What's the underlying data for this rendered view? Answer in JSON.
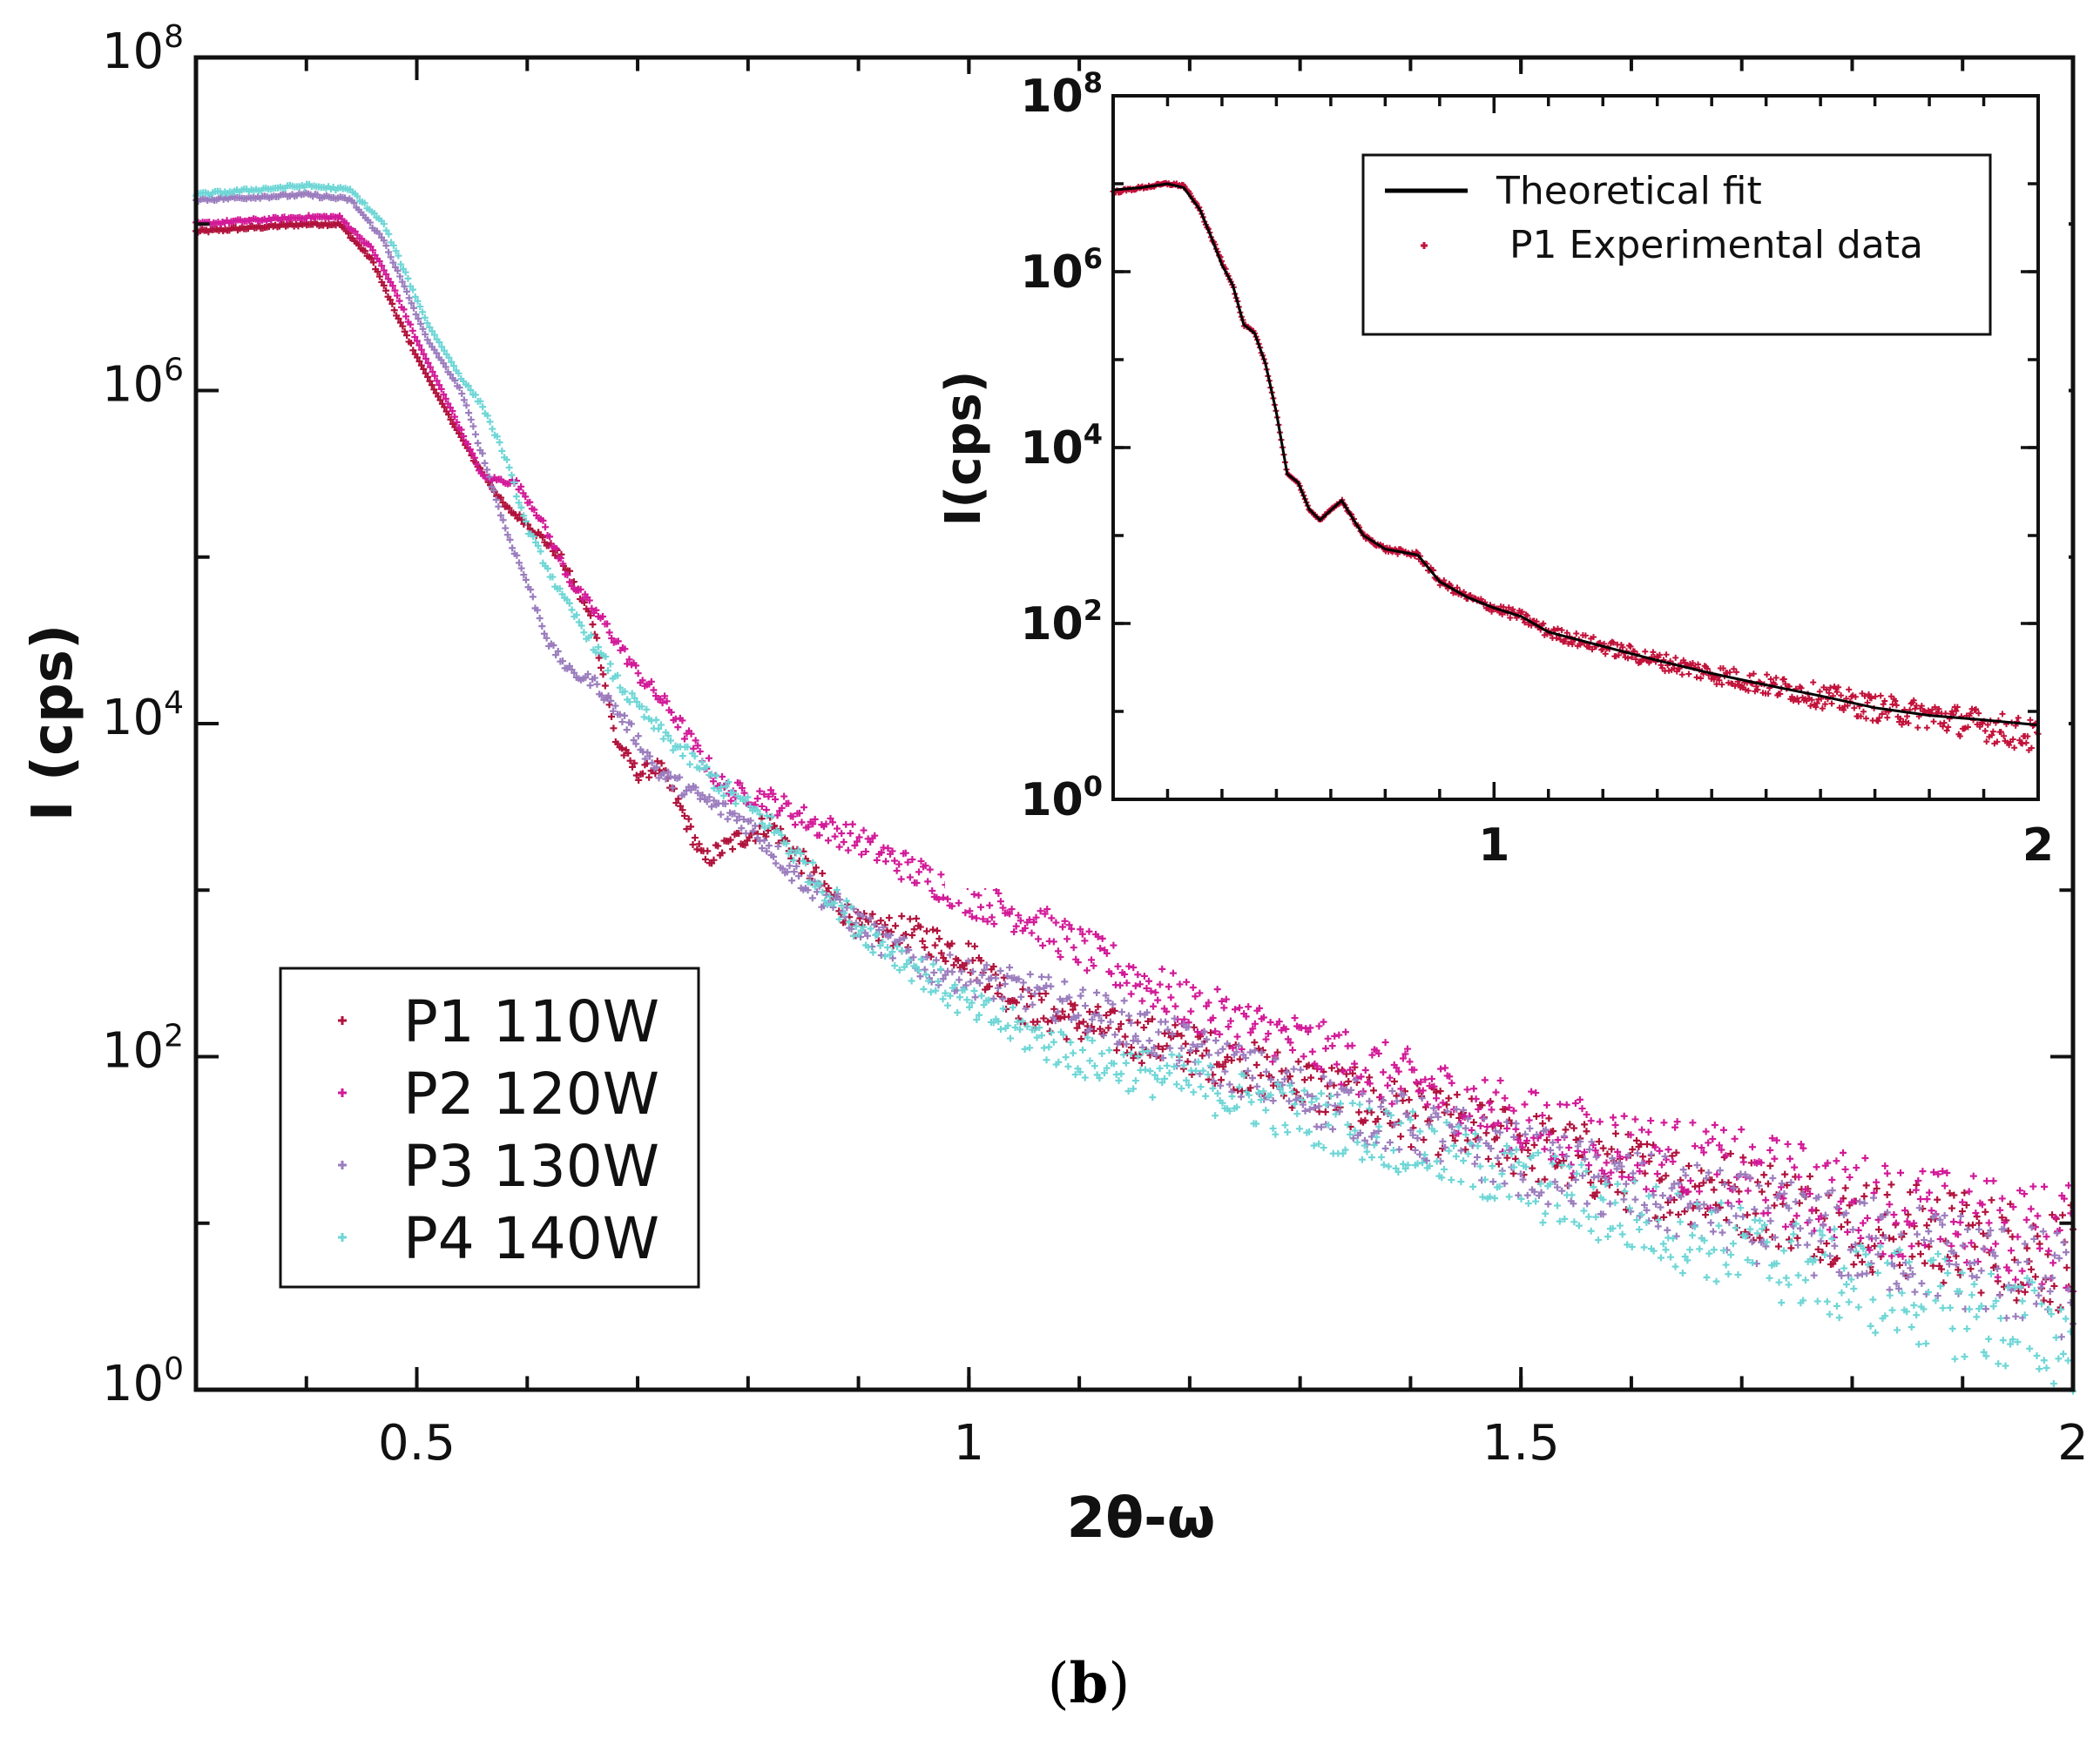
{
  "caption": {
    "open": "(",
    "letter": "b",
    "close": ")"
  },
  "chart_data": [
    {
      "type": "scatter",
      "name": "main",
      "title": "",
      "xlabel": "2θ-ω",
      "ylabel": "I (cps)",
      "xscale": "linear",
      "yscale": "log",
      "xlim": [
        0.3,
        2.0
      ],
      "ylim": [
        1,
        100000000
      ],
      "xticks": [
        {
          "value": 0.5,
          "label": "0.5"
        },
        {
          "value": 1.0,
          "label": "1"
        },
        {
          "value": 1.5,
          "label": "1.5"
        },
        {
          "value": 2.0,
          "label": "2"
        }
      ],
      "yticks": [
        {
          "value": 1,
          "base": "10",
          "exp": "0"
        },
        {
          "value": 100,
          "base": "10",
          "exp": "2"
        },
        {
          "value": 10000,
          "base": "10",
          "exp": "4"
        },
        {
          "value": 1000000,
          "base": "10",
          "exp": "6"
        },
        {
          "value": 100000000,
          "base": "10",
          "exp": "8"
        }
      ],
      "legend_position": "lower-left",
      "series": [
        {
          "name": "P1 110W",
          "color": "#b0123c",
          "points": [
            [
              0.3,
              9000000.0
            ],
            [
              0.35,
              9500000.0
            ],
            [
              0.4,
              10000000.0
            ],
            [
              0.43,
              10000000.0
            ],
            [
              0.46,
              6000000.0
            ],
            [
              0.48,
              3000000.0
            ],
            [
              0.5,
              1600000.0
            ],
            [
              0.52,
              900000.0
            ],
            [
              0.55,
              400000.0
            ],
            [
              0.58,
              200000.0
            ],
            [
              0.6,
              160000.0
            ],
            [
              0.63,
              100000.0
            ],
            [
              0.66,
              40000.0
            ],
            [
              0.68,
              8000.0
            ],
            [
              0.7,
              5000.0
            ],
            [
              0.72,
              5500.0
            ],
            [
              0.74,
              3000.0
            ],
            [
              0.76,
              1500.0
            ],
            [
              0.79,
              2000.0
            ],
            [
              0.82,
              2500.0
            ],
            [
              0.86,
              1200.0
            ],
            [
              0.9,
              600
            ],
            [
              0.95,
              550
            ],
            [
              1.0,
              400
            ],
            [
              1.05,
              200
            ],
            [
              1.1,
              160
            ],
            [
              1.15,
              130
            ],
            [
              1.2,
              110
            ],
            [
              1.3,
              70
            ],
            [
              1.4,
              45
            ],
            [
              1.5,
              30
            ],
            [
              1.6,
              20
            ],
            [
              1.7,
              15
            ],
            [
              1.8,
              10
            ],
            [
              1.9,
              8
            ],
            [
              2.0,
              6
            ]
          ]
        },
        {
          "name": "P2 120W",
          "color": "#d21a98",
          "points": [
            [
              0.3,
              10000000.0
            ],
            [
              0.35,
              10500000.0
            ],
            [
              0.4,
              11000000.0
            ],
            [
              0.43,
              11000000.0
            ],
            [
              0.46,
              7000000.0
            ],
            [
              0.48,
              4000000.0
            ],
            [
              0.5,
              2000000.0
            ],
            [
              0.53,
              800000.0
            ],
            [
              0.56,
              300000.0
            ],
            [
              0.59,
              280000.0
            ],
            [
              0.61,
              180000.0
            ],
            [
              0.64,
              70000.0
            ],
            [
              0.67,
              40000.0
            ],
            [
              0.7,
              20000.0
            ],
            [
              0.73,
              12000.0
            ],
            [
              0.76,
              6000.0
            ],
            [
              0.78,
              4000.0
            ],
            [
              0.82,
              3500.0
            ],
            [
              0.86,
              2500.0
            ],
            [
              0.9,
              2000.0
            ],
            [
              0.95,
              1300.0
            ],
            [
              1.0,
              900
            ],
            [
              1.05,
              700
            ],
            [
              1.1,
              450
            ],
            [
              1.15,
              300
            ],
            [
              1.2,
              200
            ],
            [
              1.3,
              120
            ],
            [
              1.4,
              70
            ],
            [
              1.5,
              40
            ],
            [
              1.6,
              28
            ],
            [
              1.7,
              20
            ],
            [
              1.8,
              14
            ],
            [
              1.9,
              10
            ],
            [
              2.0,
              8
            ]
          ]
        },
        {
          "name": "P3 130W",
          "color": "#9b7dbe",
          "points": [
            [
              0.3,
              14000000.0
            ],
            [
              0.35,
              14500000.0
            ],
            [
              0.4,
              15000000.0
            ],
            [
              0.44,
              14000000.0
            ],
            [
              0.47,
              8000000.0
            ],
            [
              0.49,
              4000000.0
            ],
            [
              0.51,
              2000000.0
            ],
            [
              0.54,
              1000000.0
            ],
            [
              0.56,
              400000.0
            ],
            [
              0.58,
              150000.0
            ],
            [
              0.6,
              70000.0
            ],
            [
              0.62,
              30000.0
            ],
            [
              0.64,
              20000.0
            ],
            [
              0.66,
              18000.0
            ],
            [
              0.69,
              10000.0
            ],
            [
              0.72,
              5000.0
            ],
            [
              0.76,
              3500.0
            ],
            [
              0.8,
              2500.0
            ],
            [
              0.84,
              1300.0
            ],
            [
              0.88,
              800
            ],
            [
              0.92,
              500
            ],
            [
              0.96,
              350
            ],
            [
              1.0,
              300
            ],
            [
              1.05,
              250
            ],
            [
              1.1,
              200
            ],
            [
              1.15,
              150
            ],
            [
              1.2,
              110
            ],
            [
              1.3,
              60
            ],
            [
              1.4,
              38
            ],
            [
              1.5,
              24
            ],
            [
              1.6,
              16
            ],
            [
              1.7,
              11
            ],
            [
              1.8,
              8
            ],
            [
              1.9,
              6
            ],
            [
              2.0,
              4
            ]
          ]
        },
        {
          "name": "P4 140W",
          "color": "#6fd6d6",
          "points": [
            [
              0.3,
              15000000.0
            ],
            [
              0.35,
              16000000.0
            ],
            [
              0.4,
              17000000.0
            ],
            [
              0.44,
              16000000.0
            ],
            [
              0.47,
              10000000.0
            ],
            [
              0.49,
              5000000.0
            ],
            [
              0.51,
              2500000.0
            ],
            [
              0.54,
              1200000.0
            ],
            [
              0.56,
              800000.0
            ],
            [
              0.58,
              400000.0
            ],
            [
              0.6,
              150000.0
            ],
            [
              0.63,
              60000.0
            ],
            [
              0.66,
              30000.0
            ],
            [
              0.69,
              15000.0
            ],
            [
              0.72,
              9000.0
            ],
            [
              0.75,
              6000.0
            ],
            [
              0.78,
              4000.0
            ],
            [
              0.82,
              2500.0
            ],
            [
              0.86,
              1200.0
            ],
            [
              0.9,
              600
            ],
            [
              0.95,
              350
            ],
            [
              1.0,
              200
            ],
            [
              1.05,
              140
            ],
            [
              1.1,
              100
            ],
            [
              1.2,
              70
            ],
            [
              1.3,
              45
            ],
            [
              1.4,
              30
            ],
            [
              1.5,
              18
            ],
            [
              1.6,
              11
            ],
            [
              1.7,
              7
            ],
            [
              1.8,
              4.5
            ],
            [
              1.9,
              3
            ],
            [
              2.0,
              2
            ]
          ]
        }
      ]
    },
    {
      "type": "line",
      "name": "inset",
      "title": "",
      "xlabel": "",
      "ylabel": "I(cps)",
      "xscale": "linear",
      "yscale": "log",
      "xlim": [
        0.3,
        2.0
      ],
      "ylim": [
        1,
        100000000
      ],
      "xticks": [
        {
          "value": 1.0,
          "label": "1"
        },
        {
          "value": 2.0,
          "label": "2"
        }
      ],
      "yticks": [
        {
          "value": 1,
          "base": "10",
          "exp": "0"
        },
        {
          "value": 100,
          "base": "10",
          "exp": "2"
        },
        {
          "value": 10000,
          "base": "10",
          "exp": "4"
        },
        {
          "value": 1000000,
          "base": "10",
          "exp": "6"
        },
        {
          "value": 100000000,
          "base": "10",
          "exp": "8"
        }
      ],
      "legend_position": "top-right",
      "series": [
        {
          "name": "Theoretical fit",
          "color": "#000000",
          "style": "line",
          "points": [
            [
              0.3,
              8500000.0
            ],
            [
              0.35,
              9000000.0
            ],
            [
              0.4,
              10000000.0
            ],
            [
              0.43,
              9000000.0
            ],
            [
              0.46,
              5000000.0
            ],
            [
              0.48,
              2500000.0
            ],
            [
              0.5,
              1200000.0
            ],
            [
              0.52,
              700000.0
            ],
            [
              0.54,
              250000.0
            ],
            [
              0.56,
              200000.0
            ],
            [
              0.58,
              90000.0
            ],
            [
              0.6,
              25000.0
            ],
            [
              0.62,
              5000.0
            ],
            [
              0.64,
              4000.0
            ],
            [
              0.66,
              2000.0
            ],
            [
              0.68,
              1500.0
            ],
            [
              0.72,
              2500.0
            ],
            [
              0.76,
              1000.0
            ],
            [
              0.8,
              700
            ],
            [
              0.86,
              600
            ],
            [
              0.9,
              300
            ],
            [
              0.95,
              200
            ],
            [
              1.0,
              150
            ],
            [
              1.05,
              120
            ],
            [
              1.1,
              80
            ],
            [
              1.2,
              55
            ],
            [
              1.3,
              38
            ],
            [
              1.4,
              27
            ],
            [
              1.5,
              20
            ],
            [
              1.6,
              15
            ],
            [
              1.7,
              11
            ],
            [
              1.8,
              9
            ],
            [
              1.9,
              8
            ],
            [
              2.0,
              7
            ]
          ]
        },
        {
          "name": "P1 Experimental data",
          "color": "#c2123a",
          "style": "points",
          "points": [
            [
              0.3,
              8000000.0
            ],
            [
              0.35,
              9000000.0
            ],
            [
              0.4,
              10000000.0
            ],
            [
              0.43,
              9500000.0
            ],
            [
              0.46,
              5000000.0
            ],
            [
              0.48,
              2500000.0
            ],
            [
              0.5,
              1300000.0
            ],
            [
              0.52,
              700000.0
            ],
            [
              0.54,
              250000.0
            ],
            [
              0.56,
              200000.0
            ],
            [
              0.58,
              90000.0
            ],
            [
              0.6,
              25000.0
            ],
            [
              0.62,
              5000.0
            ],
            [
              0.64,
              4000.0
            ],
            [
              0.66,
              2000.0
            ],
            [
              0.68,
              1500.0
            ],
            [
              0.72,
              2500.0
            ],
            [
              0.76,
              1000.0
            ],
            [
              0.8,
              700
            ],
            [
              0.86,
              600
            ],
            [
              0.9,
              300
            ],
            [
              0.95,
              200
            ],
            [
              1.0,
              150
            ],
            [
              1.05,
              120
            ],
            [
              1.1,
              80
            ],
            [
              1.2,
              55
            ],
            [
              1.3,
              38
            ],
            [
              1.4,
              27
            ],
            [
              1.5,
              20
            ],
            [
              1.6,
              15
            ],
            [
              1.7,
              11
            ],
            [
              1.8,
              9
            ],
            [
              1.9,
              7
            ],
            [
              2.0,
              5
            ]
          ]
        }
      ]
    }
  ]
}
